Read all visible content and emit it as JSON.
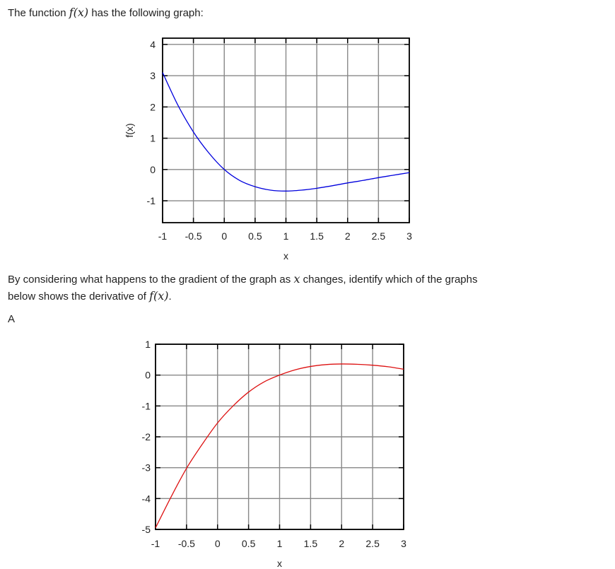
{
  "intro": {
    "text_before": "The function",
    "func": "f(x)",
    "text_after": "has the following graph:"
  },
  "question": {
    "line1_before": "By considering what happens to the gradient of the graph as",
    "line1_var": "x",
    "line1_after": "changes, identify which of the graphs",
    "line2_before": "below shows the derivative of",
    "line2_func": "f(x)",
    "line2_after": "."
  },
  "option_label": "A",
  "chart_data": [
    {
      "type": "line",
      "xlabel": "x",
      "ylabel": "f(x)",
      "xlim": [
        -1,
        3
      ],
      "ylim": [
        -1.7,
        4.2
      ],
      "xticks": [
        "-1",
        "-0.5",
        "0",
        "0.5",
        "1",
        "1.5",
        "2",
        "2.5",
        "3"
      ],
      "yticks": [
        "4",
        "3",
        "2",
        "1",
        "0",
        "-1"
      ],
      "grid": true,
      "series": [
        {
          "color": "#0000dd",
          "x": [
            -1,
            -0.75,
            -0.5,
            -0.25,
            0,
            0.25,
            0.5,
            0.75,
            1,
            1.25,
            1.5,
            1.75,
            2,
            2.25,
            2.5,
            2.75,
            3
          ],
          "y": [
            3.1,
            2.05,
            1.2,
            0.53,
            0.0,
            -0.35,
            -0.55,
            -0.66,
            -0.69,
            -0.66,
            -0.6,
            -0.52,
            -0.43,
            -0.35,
            -0.26,
            -0.18,
            -0.1
          ]
        }
      ]
    },
    {
      "type": "line",
      "xlabel": "x",
      "ylabel": "",
      "xlim": [
        -1,
        3
      ],
      "ylim": [
        -5,
        1
      ],
      "xticks": [
        "-1",
        "-0.5",
        "0",
        "0.5",
        "1",
        "1.5",
        "2",
        "2.5",
        "3"
      ],
      "yticks": [
        "1",
        "0",
        "-1",
        "-2",
        "-3",
        "-4",
        "-5"
      ],
      "grid": true,
      "series": [
        {
          "color": "#dd1111",
          "x": [
            -1,
            -0.75,
            -0.5,
            -0.25,
            0,
            0.25,
            0.5,
            0.75,
            1,
            1.25,
            1.5,
            1.75,
            2,
            2.25,
            2.5,
            2.75,
            3
          ],
          "y": [
            -4.95,
            -3.95,
            -3.02,
            -2.25,
            -1.55,
            -1.0,
            -0.55,
            -0.22,
            0.0,
            0.17,
            0.28,
            0.34,
            0.36,
            0.35,
            0.32,
            0.27,
            0.19
          ]
        }
      ]
    }
  ]
}
